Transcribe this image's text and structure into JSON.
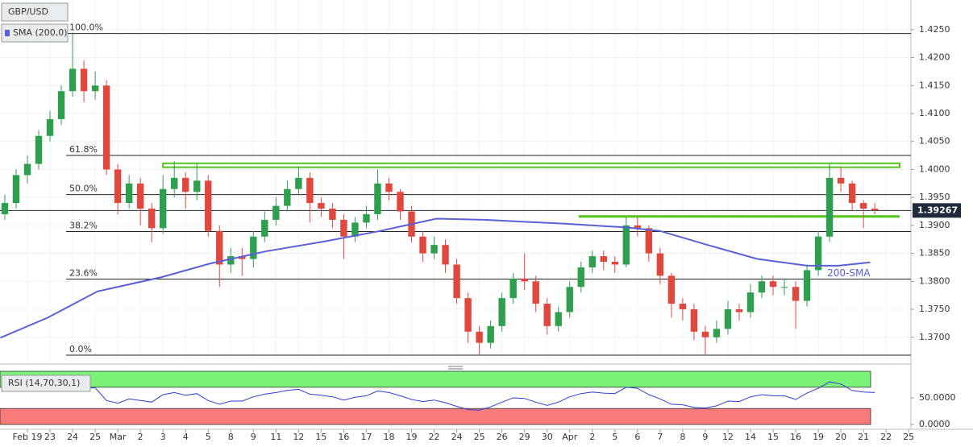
{
  "chart_data": [
    {
      "type": "candlestick",
      "title": "GBP/USD",
      "colors": {
        "up": "#2f9e4f",
        "down": "#e0483e",
        "wick": "#333333"
      },
      "x": [
        -1,
        -0.5,
        0,
        0.5,
        1,
        1.5,
        2,
        2.5,
        3,
        3.5,
        4,
        4.5,
        5,
        5.5,
        6,
        6.5,
        7,
        7.5,
        8,
        8.5,
        9,
        9.5,
        10,
        10.5,
        11,
        11.5,
        12,
        12.5,
        13,
        13.5,
        14,
        14.5,
        15,
        15.5,
        16,
        16.5,
        17,
        17.5,
        18,
        18.5,
        19,
        19.5,
        20,
        20.5,
        21,
        21.5,
        22,
        22.5,
        23,
        23.5,
        24,
        24.5,
        25,
        25.5,
        26,
        26.5,
        27,
        27.5,
        28,
        28.5,
        29,
        29.5,
        30,
        30.5,
        31,
        31.5,
        32,
        32.5,
        33,
        33.5,
        34,
        34.5,
        35,
        35.5,
        36,
        36.5,
        37,
        37.5
      ],
      "open": [
        1.392,
        1.394,
        1.399,
        1.401,
        1.406,
        1.409,
        1.414,
        1.418,
        1.414,
        1.415,
        1.4,
        1.394,
        1.3975,
        1.393,
        1.3895,
        1.3965,
        1.3985,
        1.396,
        1.398,
        1.389,
        1.383,
        1.3845,
        1.384,
        1.388,
        1.391,
        1.3935,
        1.3965,
        1.3985,
        1.394,
        1.393,
        1.391,
        1.388,
        1.3905,
        1.392,
        1.3975,
        1.396,
        1.3925,
        1.388,
        1.385,
        1.3865,
        1.383,
        1.377,
        1.371,
        1.369,
        1.372,
        1.377,
        1.3805,
        1.38,
        1.376,
        1.372,
        1.3745,
        1.379,
        1.3825,
        1.3845,
        1.3835,
        1.383,
        1.39,
        1.3895,
        1.385,
        1.381,
        1.376,
        1.375,
        1.371,
        1.37,
        1.3715,
        1.375,
        1.3745,
        1.378,
        1.38,
        1.379,
        1.379,
        1.3765,
        1.382,
        1.388,
        1.3985,
        1.3975,
        1.394,
        1.393
      ],
      "high": [
        1.3955,
        1.4,
        1.4025,
        1.407,
        1.4105,
        1.415,
        1.4245,
        1.4195,
        1.4175,
        1.416,
        1.401,
        1.399,
        1.3985,
        1.394,
        1.399,
        1.4015,
        1.3995,
        1.401,
        1.399,
        1.39,
        1.386,
        1.386,
        1.389,
        1.3925,
        1.395,
        1.398,
        1.4005,
        1.3995,
        1.395,
        1.394,
        1.392,
        1.3915,
        1.3935,
        1.4,
        1.3985,
        1.3965,
        1.3935,
        1.389,
        1.388,
        1.3875,
        1.384,
        1.378,
        1.372,
        1.373,
        1.378,
        1.3815,
        1.385,
        1.381,
        1.377,
        1.3755,
        1.38,
        1.3835,
        1.3855,
        1.3855,
        1.3845,
        1.3915,
        1.3915,
        1.39,
        1.386,
        1.3815,
        1.377,
        1.376,
        1.372,
        1.373,
        1.3765,
        1.376,
        1.3795,
        1.381,
        1.381,
        1.3805,
        1.38,
        1.383,
        1.389,
        1.401,
        1.4005,
        1.398,
        1.3945,
        1.394
      ],
      "low": [
        1.391,
        1.393,
        1.3975,
        1.4,
        1.405,
        1.408,
        1.413,
        1.412,
        1.4125,
        1.399,
        1.392,
        1.393,
        1.39,
        1.387,
        1.3885,
        1.395,
        1.393,
        1.3945,
        1.388,
        1.379,
        1.3815,
        1.381,
        1.3825,
        1.387,
        1.39,
        1.3925,
        1.3955,
        1.3905,
        1.3915,
        1.3895,
        1.384,
        1.387,
        1.3895,
        1.391,
        1.3945,
        1.391,
        1.387,
        1.3835,
        1.384,
        1.3815,
        1.376,
        1.369,
        1.367,
        1.368,
        1.371,
        1.376,
        1.3785,
        1.3745,
        1.3705,
        1.371,
        1.3735,
        1.378,
        1.3815,
        1.382,
        1.3815,
        1.3825,
        1.388,
        1.3835,
        1.3795,
        1.3735,
        1.373,
        1.3695,
        1.367,
        1.369,
        1.3705,
        1.373,
        1.3735,
        1.377,
        1.3775,
        1.3775,
        1.3715,
        1.3755,
        1.381,
        1.387,
        1.396,
        1.3925,
        1.3895,
        1.392
      ],
      "close": [
        1.394,
        1.399,
        1.401,
        1.406,
        1.409,
        1.414,
        1.418,
        1.414,
        1.415,
        1.4,
        1.394,
        1.3975,
        1.393,
        1.3895,
        1.3965,
        1.3985,
        1.396,
        1.398,
        1.389,
        1.383,
        1.3845,
        1.384,
        1.388,
        1.391,
        1.3935,
        1.3965,
        1.3985,
        1.394,
        1.393,
        1.391,
        1.388,
        1.3905,
        1.392,
        1.3975,
        1.396,
        1.3925,
        1.388,
        1.385,
        1.3865,
        1.383,
        1.377,
        1.371,
        1.369,
        1.372,
        1.377,
        1.3805,
        1.38,
        1.376,
        1.372,
        1.3745,
        1.379,
        1.3825,
        1.3845,
        1.3835,
        1.383,
        1.39,
        1.3895,
        1.385,
        1.381,
        1.376,
        1.375,
        1.371,
        1.37,
        1.3715,
        1.375,
        1.3745,
        1.378,
        1.38,
        1.379,
        1.379,
        1.3765,
        1.382,
        1.388,
        1.3985,
        1.3975,
        1.394,
        1.393,
        1.3927
      ],
      "series": [
        {
          "name": "SMA (200,0)",
          "label": "200-SMA",
          "color": "#5960d8",
          "x": [
            -1.2,
            0.9,
            3.1,
            5.9,
            8.1,
            10.6,
            13.1,
            15.6,
            18.1,
            20.2,
            23.8,
            26.6,
            28.0,
            30.2,
            32.3,
            34.5,
            35.9,
            37.3
          ],
          "values": [
            1.3699,
            1.3735,
            1.3782,
            1.3807,
            1.3832,
            1.3854,
            1.3871,
            1.389,
            1.3912,
            1.391,
            1.3903,
            1.3896,
            1.389,
            1.3864,
            1.384,
            1.3828,
            1.3828,
            1.3834
          ]
        }
      ],
      "fib_levels": [
        {
          "label": "100.0%",
          "price": 1.4243
        },
        {
          "label": "61.8%",
          "price": 1.4025
        },
        {
          "label": "50.0%",
          "price": 1.3955
        },
        {
          "label": "38.2%",
          "price": 1.3889
        },
        {
          "label": "23.6%",
          "price": 1.3804
        },
        {
          "label": "0.0%",
          "price": 1.3668
        }
      ],
      "zones": [
        {
          "ylim": [
            1.4004,
            1.4011
          ],
          "xlim": [
            6.0,
            38.6
          ],
          "color": "#52c41a"
        }
      ],
      "levels": [
        {
          "value": 1.3916,
          "xlim": [
            24.4,
            38.6
          ],
          "color": "#52c41a"
        }
      ],
      "last_price": 1.39267,
      "xlim": [
        -1.213,
        39.1
      ],
      "xticks": [
        {
          "value": 0,
          "label": "Feb 19"
        },
        {
          "value": 1,
          "label": "23"
        },
        {
          "value": 2,
          "label": "24"
        },
        {
          "value": 3,
          "label": "25"
        },
        {
          "value": 4,
          "label": "Mar"
        },
        {
          "value": 5,
          "label": "2"
        },
        {
          "value": 6,
          "label": "3"
        },
        {
          "value": 7,
          "label": "4"
        },
        {
          "value": 8,
          "label": "5"
        },
        {
          "value": 9,
          "label": "8"
        },
        {
          "value": 10,
          "label": "9"
        },
        {
          "value": 11,
          "label": "11"
        },
        {
          "value": 12,
          "label": "12"
        },
        {
          "value": 13,
          "label": "15"
        },
        {
          "value": 14,
          "label": "16"
        },
        {
          "value": 15,
          "label": "17"
        },
        {
          "value": 16,
          "label": "18"
        },
        {
          "value": 17,
          "label": "19"
        },
        {
          "value": 18,
          "label": "22"
        },
        {
          "value": 19,
          "label": "24"
        },
        {
          "value": 20,
          "label": "25"
        },
        {
          "value": 21,
          "label": "26"
        },
        {
          "value": 22,
          "label": "29"
        },
        {
          "value": 23,
          "label": "30"
        },
        {
          "value": 24,
          "label": "Apr"
        },
        {
          "value": 25,
          "label": "2"
        },
        {
          "value": 26,
          "label": "5"
        },
        {
          "value": 27,
          "label": "6"
        },
        {
          "value": 28,
          "label": "7"
        },
        {
          "value": 29,
          "label": "8"
        },
        {
          "value": 30,
          "label": "9"
        },
        {
          "value": 31,
          "label": "12"
        },
        {
          "value": 32,
          "label": "14"
        },
        {
          "value": 33,
          "label": "15"
        },
        {
          "value": 34,
          "label": "16"
        },
        {
          "value": 35,
          "label": "19"
        },
        {
          "value": 36,
          "label": "20"
        },
        {
          "value": 37,
          "label": "21"
        },
        {
          "value": 38,
          "label": "22"
        },
        {
          "value": 39,
          "label": "25"
        }
      ],
      "ylim": [
        1.3655,
        1.4303
      ],
      "yticks": [
        {
          "value": 1.425,
          "label": "1.4250"
        },
        {
          "value": 1.42,
          "label": "1.4200"
        },
        {
          "value": 1.415,
          "label": "1.4150"
        },
        {
          "value": 1.41,
          "label": "1.4100"
        },
        {
          "value": 1.405,
          "label": "1.4050"
        },
        {
          "value": 1.4,
          "label": "1.4000"
        },
        {
          "value": 1.395,
          "label": "1.3950"
        },
        {
          "value": 1.39,
          "label": "1.3900"
        },
        {
          "value": 1.385,
          "label": "1.3850"
        },
        {
          "value": 1.38,
          "label": "1.3800"
        },
        {
          "value": 1.375,
          "label": "1.3750"
        },
        {
          "value": 1.37,
          "label": "1.3700"
        }
      ],
      "grid": true
    },
    {
      "type": "line",
      "title": "RSI (14,70,30,1)",
      "color": "#2c3bd6",
      "x": [
        -1,
        -0.5,
        0,
        0.5,
        1,
        1.5,
        2,
        2.5,
        3,
        3.5,
        4,
        4.5,
        5,
        5.5,
        6,
        6.5,
        7,
        7.5,
        8,
        8.5,
        9,
        9.5,
        10,
        10.5,
        11,
        11.5,
        12,
        12.5,
        13,
        13.5,
        14,
        14.5,
        15,
        15.5,
        16,
        16.5,
        17,
        17.5,
        18,
        18.5,
        19,
        19.5,
        20,
        20.5,
        21,
        21.5,
        22,
        22.5,
        23,
        23.5,
        24,
        24.5,
        25,
        25.5,
        26,
        26.5,
        27,
        27.5,
        28,
        28.5,
        29,
        29.5,
        30,
        30.5,
        31,
        31.5,
        32,
        32.5,
        33,
        33.5,
        34,
        34.5,
        35,
        35.5,
        36,
        36.5,
        37,
        37.5
      ],
      "values": [
        66,
        68,
        70,
        71,
        72,
        73,
        74,
        68,
        69,
        45,
        40,
        48,
        45,
        42,
        56,
        60,
        55,
        58,
        45,
        38,
        44,
        44,
        52,
        57,
        60,
        64,
        66,
        57,
        55,
        52,
        46,
        51,
        54,
        63,
        60,
        54,
        47,
        43,
        46,
        41,
        34,
        28,
        27,
        33,
        42,
        50,
        49,
        42,
        36,
        42,
        52,
        58,
        61,
        59,
        58,
        70,
        68,
        56,
        48,
        38,
        37,
        32,
        31,
        35,
        44,
        43,
        52,
        56,
        54,
        54,
        47,
        59,
        68,
        80,
        76,
        64,
        61,
        60
      ],
      "bands": [
        {
          "from": 70,
          "to": 100,
          "color": "#7cf279"
        },
        {
          "from": 0,
          "to": 30,
          "color": "#f77b7b"
        }
      ],
      "xlim": [
        -1.213,
        39.1
      ],
      "ylim": [
        -4.5,
        101.5
      ],
      "yticks": [
        {
          "value": 50,
          "label": "50.0000"
        },
        {
          "value": 0,
          "label": "0.0000"
        }
      ]
    }
  ]
}
